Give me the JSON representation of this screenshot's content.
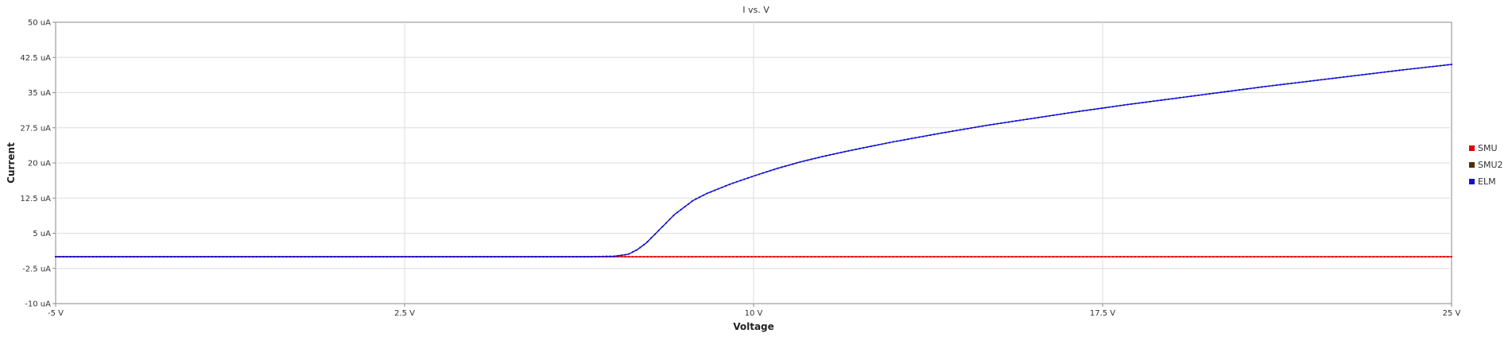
{
  "chart_data": {
    "type": "line",
    "title": "I vs. V",
    "xlabel": "Voltage",
    "ylabel": "Current",
    "xlim": [
      -5,
      25
    ],
    "ylim": [
      -10,
      50
    ],
    "x_ticks": [
      -5,
      2.5,
      10,
      17.5,
      25
    ],
    "x_tick_labels": [
      "-5 V",
      "2.5 V",
      "10 V",
      "17.5 V",
      "25 V"
    ],
    "y_ticks": [
      -10,
      -2.5,
      5,
      12.5,
      20,
      27.5,
      35,
      42.5,
      50
    ],
    "y_tick_labels": [
      "-10 uA",
      "-2.5 uA",
      "5 uA",
      "12.5 uA",
      "20 uA",
      "27.5 uA",
      "35 uA",
      "42.5 uA",
      "50 uA"
    ],
    "grid": true,
    "legend_position": "right",
    "series": [
      {
        "name": "SMU",
        "color": "#e00000",
        "marker": "dot",
        "x": [
          -5,
          0,
          5,
          7,
          8,
          8.5,
          9,
          10,
          12.5,
          15,
          17.5,
          20,
          22.5,
          25
        ],
        "y": [
          0,
          0,
          0,
          0,
          0,
          0,
          0,
          0,
          0,
          0,
          0,
          0,
          0,
          0
        ]
      },
      {
        "name": "SMU2",
        "color": "#5a2a0a",
        "marker": "dot",
        "x": [],
        "y": []
      },
      {
        "name": "ELM",
        "color": "#1010d0",
        "marker": "dot",
        "x": [
          -5,
          0,
          5,
          6.5,
          7,
          7.3,
          7.5,
          7.7,
          7.9,
          8.0,
          8.1,
          8.3,
          8.5,
          8.7,
          9.0,
          9.25,
          9.5,
          10.0,
          10.5,
          11.0,
          11.5,
          12.0,
          12.5,
          13.0,
          14.0,
          15.0,
          16.0,
          17.0,
          17.5,
          18.0,
          19.0,
          20.0,
          21.0,
          22.0,
          23.0,
          24.0,
          25.0
        ],
        "y": [
          0,
          0,
          0,
          0,
          0.1,
          0.5,
          1.5,
          3.0,
          5.0,
          6.0,
          7.0,
          9.0,
          10.5,
          12.0,
          13.5,
          14.5,
          15.5,
          17.2,
          18.8,
          20.2,
          21.4,
          22.5,
          23.5,
          24.5,
          26.3,
          28.0,
          29.5,
          31.0,
          31.7,
          32.4,
          33.7,
          35.0,
          36.3,
          37.5,
          38.7,
          39.9,
          41.0
        ]
      }
    ]
  }
}
